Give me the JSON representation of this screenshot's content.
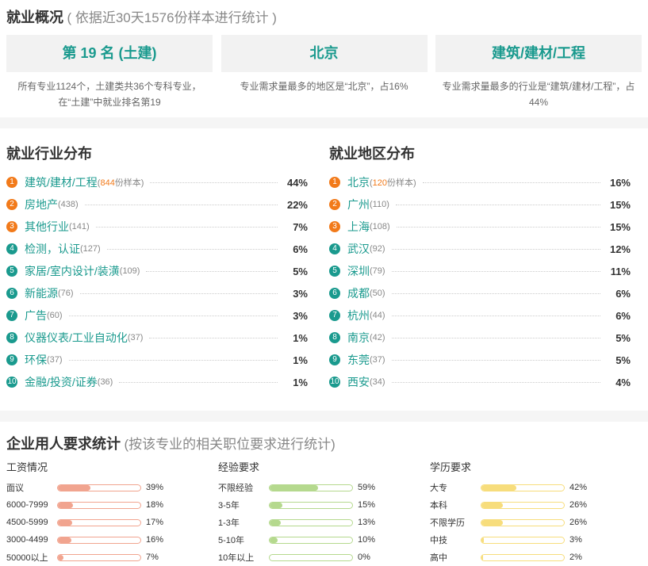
{
  "overview": {
    "title": "就业概况",
    "subtitle": "( 依据近30天1576份样本进行统计 )",
    "cards": [
      {
        "value": "第 19 名 (土建)",
        "desc": "所有专业1124个，土建类共36个专科专业，在“土建”中就业排名第19"
      },
      {
        "value": "北京",
        "desc": "专业需求量最多的地区是“北京”，占16%"
      },
      {
        "value": "建筑/建材/工程",
        "desc": "专业需求量最多的行业是“建筑/建材/工程”，占44%"
      }
    ]
  },
  "industry": {
    "title": "就业行业分布",
    "items": [
      {
        "rank": "1",
        "name": "建筑/建材/工程",
        "count": "844",
        "suffix": "份样本",
        "pct": "44%"
      },
      {
        "rank": "2",
        "name": "房地产",
        "count": "(438)",
        "pct": "22%"
      },
      {
        "rank": "3",
        "name": "其他行业",
        "count": "(141)",
        "pct": "7%"
      },
      {
        "rank": "4",
        "name": "检测，认证",
        "count": "(127)",
        "pct": "6%"
      },
      {
        "rank": "5",
        "name": "家居/室内设计/装潢",
        "count": "(109)",
        "pct": "5%"
      },
      {
        "rank": "6",
        "name": "新能源",
        "count": "(76)",
        "pct": "3%"
      },
      {
        "rank": "7",
        "name": "广告",
        "count": "(60)",
        "pct": "3%"
      },
      {
        "rank": "8",
        "name": "仪器仪表/工业自动化",
        "count": "(37)",
        "pct": "1%"
      },
      {
        "rank": "9",
        "name": "环保",
        "count": "(37)",
        "pct": "1%"
      },
      {
        "rank": "10",
        "name": "金融/投资/证券",
        "count": "(36)",
        "pct": "1%"
      }
    ]
  },
  "region": {
    "title": "就业地区分布",
    "items": [
      {
        "rank": "1",
        "name": "北京",
        "count": "120",
        "suffix": "份样本",
        "pct": "16%"
      },
      {
        "rank": "2",
        "name": "广州",
        "count": "(110)",
        "pct": "15%"
      },
      {
        "rank": "3",
        "name": "上海",
        "count": "(108)",
        "pct": "15%"
      },
      {
        "rank": "4",
        "name": "武汉",
        "count": "(92)",
        "pct": "12%"
      },
      {
        "rank": "5",
        "name": "深圳",
        "count": "(79)",
        "pct": "11%"
      },
      {
        "rank": "6",
        "name": "成都",
        "count": "(50)",
        "pct": "6%"
      },
      {
        "rank": "7",
        "name": "杭州",
        "count": "(44)",
        "pct": "6%"
      },
      {
        "rank": "8",
        "name": "南京",
        "count": "(42)",
        "pct": "5%"
      },
      {
        "rank": "9",
        "name": "东莞",
        "count": "(37)",
        "pct": "5%"
      },
      {
        "rank": "10",
        "name": "西安",
        "count": "(34)",
        "pct": "4%"
      }
    ]
  },
  "requirements": {
    "title": "企业用人要求统计",
    "subtitle": "(按该专业的相关职位要求进行统计)",
    "groups": [
      {
        "title": "工资情况",
        "color": "#f1a48f",
        "items": [
          {
            "label": "面议",
            "pct": "39%",
            "value": 39
          },
          {
            "label": "6000-7999",
            "pct": "18%",
            "value": 18
          },
          {
            "label": "4500-5999",
            "pct": "17%",
            "value": 17
          },
          {
            "label": "3000-4499",
            "pct": "16%",
            "value": 16
          },
          {
            "label": "50000以上",
            "pct": "7%",
            "value": 7
          }
        ]
      },
      {
        "title": "经验要求",
        "color": "#b5d98e",
        "items": [
          {
            "label": "不限经验",
            "pct": "59%",
            "value": 59
          },
          {
            "label": "3-5年",
            "pct": "15%",
            "value": 15
          },
          {
            "label": "1-3年",
            "pct": "13%",
            "value": 13
          },
          {
            "label": "5-10年",
            "pct": "10%",
            "value": 10
          },
          {
            "label": "10年以上",
            "pct": "0%",
            "value": 0
          }
        ]
      },
      {
        "title": "学历要求",
        "color": "#f7dd7c",
        "items": [
          {
            "label": "大专",
            "pct": "42%",
            "value": 42
          },
          {
            "label": "本科",
            "pct": "26%",
            "value": 26
          },
          {
            "label": "不限学历",
            "pct": "26%",
            "value": 26
          },
          {
            "label": "中技",
            "pct": "3%",
            "value": 3
          },
          {
            "label": "高中",
            "pct": "2%",
            "value": 2
          }
        ]
      }
    ]
  }
}
